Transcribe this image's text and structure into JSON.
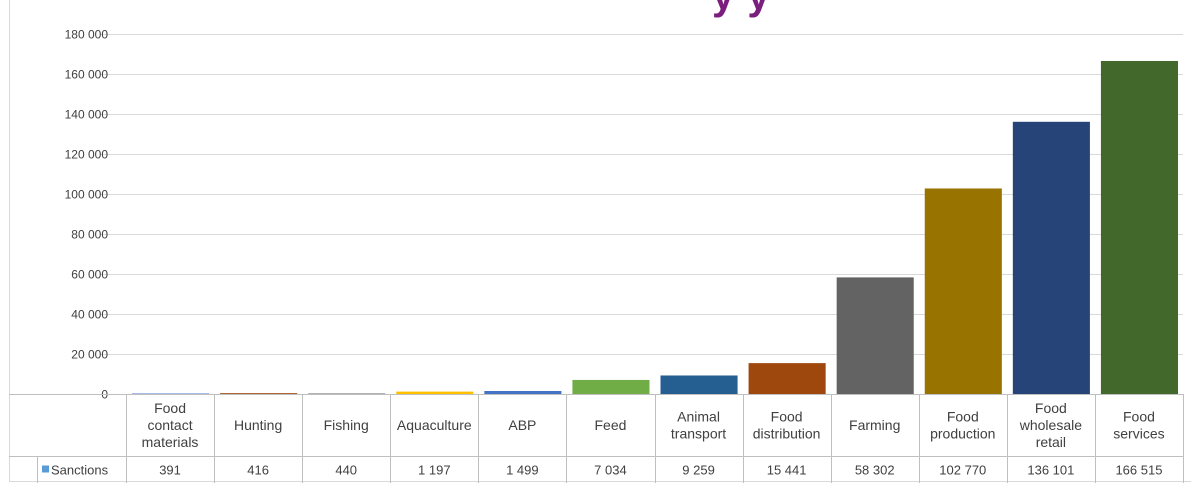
{
  "chart_data": {
    "type": "bar",
    "title": "",
    "xlabel": "",
    "ylabel": "",
    "ylim": [
      0,
      180000
    ],
    "yticks": [
      0,
      20000,
      40000,
      60000,
      80000,
      100000,
      120000,
      140000,
      160000,
      180000
    ],
    "ytick_labels": [
      "0",
      "20 000",
      "40 000",
      "60 000",
      "80 000",
      "100 000",
      "120 000",
      "140 000",
      "160 000",
      "180 000"
    ],
    "grid": true,
    "legend": "in data table (left)",
    "categories": [
      [
        "Food",
        "contact",
        "materials"
      ],
      [
        "Hunting"
      ],
      [
        "Fishing"
      ],
      [
        "Aquaculture"
      ],
      [
        "ABP"
      ],
      [
        "Feed"
      ],
      [
        "Animal",
        "transport"
      ],
      [
        "Food",
        "distribution"
      ],
      [
        "Farming"
      ],
      [
        "Food",
        "production"
      ],
      [
        "Food",
        "wholesale",
        "retail"
      ],
      [
        "Food",
        "services"
      ]
    ],
    "series": [
      {
        "name": "Sanctions",
        "legend_color": "#5b9bd5",
        "values": [
          391,
          416,
          440,
          1197,
          1499,
          7034,
          9259,
          15441,
          58302,
          102770,
          136101,
          166515
        ],
        "value_labels": [
          "391",
          "416",
          "440",
          "1 197",
          "1 499",
          "7 034",
          "9 259",
          "15 441",
          "58 302",
          "102 770",
          "136 101",
          "166 515"
        ],
        "bar_colors": [
          "#8faadc",
          "#9e480e",
          "#a5a5a5",
          "#ffc000",
          "#4472c4",
          "#70ad47",
          "#255e91",
          "#9e480e",
          "#636363",
          "#997300",
          "#264478",
          "#43682b"
        ]
      }
    ]
  },
  "title_fragment": "y        y"
}
